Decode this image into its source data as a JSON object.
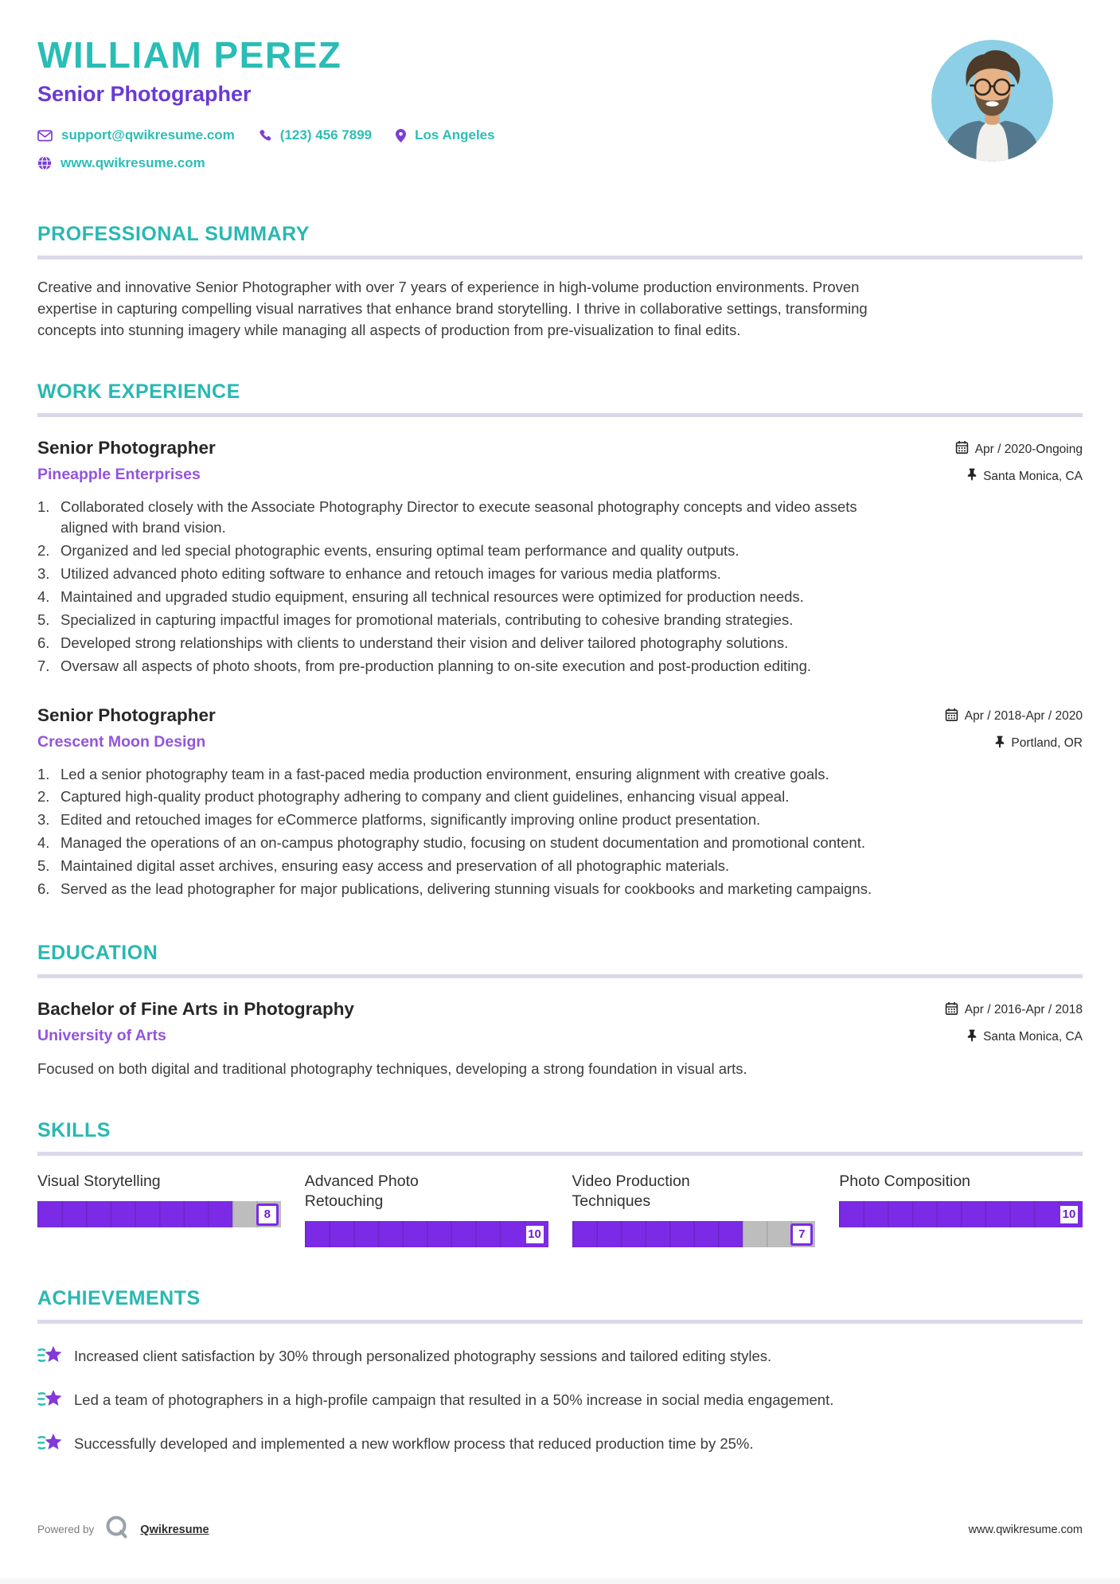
{
  "colors": {
    "teal": "#29bdb6",
    "purple_title": "#6a3ad2",
    "purple_company": "#9254dd",
    "bar_purple": "#7b2be5",
    "bar_gray": "#bdbdbd",
    "divider": "#dcd8ea",
    "body_text": "#3c3c3c",
    "avatar_background": "#8ccfe6"
  },
  "icons": {
    "contact": [
      "envelope-icon",
      "phone-icon",
      "map-pin-icon",
      "globe-icon"
    ],
    "entry_meta": [
      "calendar-icon",
      "pushpin-icon"
    ],
    "achievement": "star-icon",
    "footer": "qwikresume-q-logo"
  },
  "header": {
    "name": "WILLIAM PEREZ",
    "title": "Senior Photographer",
    "contact": {
      "email": "support@qwikresume.com",
      "phone": "(123) 456 7899",
      "location": "Los Angeles",
      "website": "www.qwikresume.com"
    }
  },
  "sections": {
    "summary": {
      "heading": "PROFESSIONAL SUMMARY",
      "text": "Creative and innovative Senior Photographer with over 7 years of experience in high-volume production environments. Proven expertise in capturing compelling visual narratives that enhance brand storytelling. I thrive in collaborative settings, transforming concepts into stunning imagery while managing all aspects of production from pre-visualization to final edits."
    },
    "experience": {
      "heading": "WORK EXPERIENCE",
      "jobs": [
        {
          "title": "Senior Photographer",
          "company": "Pineapple Enterprises",
          "date": "Apr / 2020-Ongoing",
          "location": "Santa Monica, CA",
          "bullets": [
            "Collaborated closely with the Associate Photography Director to execute seasonal photography concepts and video assets aligned with brand vision.",
            "Organized and led special photographic events, ensuring optimal team performance and quality outputs.",
            "Utilized advanced photo editing software to enhance and retouch images for various media platforms.",
            "Maintained and upgraded studio equipment, ensuring all technical resources were optimized for production needs.",
            "Specialized in capturing impactful images for promotional materials, contributing to cohesive branding strategies.",
            "Developed strong relationships with clients to understand their vision and deliver tailored photography solutions.",
            "Oversaw all aspects of photo shoots, from pre-production planning to on-site execution and post-production editing."
          ]
        },
        {
          "title": "Senior Photographer",
          "company": "Crescent Moon Design",
          "date": "Apr / 2018-Apr / 2020",
          "location": "Portland, OR",
          "bullets": [
            "Led a senior photography team in a fast-paced media production environment, ensuring alignment with creative goals.",
            "Captured high-quality product photography adhering to company and client guidelines, enhancing visual appeal.",
            "Edited and retouched images for eCommerce platforms, significantly improving online product presentation.",
            "Managed the operations of an on-campus photography studio, focusing on student documentation and promotional content.",
            "Maintained digital asset archives, ensuring easy access and preservation of all photographic materials.",
            "Served as the lead photographer for major publications, delivering stunning visuals for cookbooks and marketing campaigns."
          ]
        }
      ]
    },
    "education": {
      "heading": "EDUCATION",
      "degree": "Bachelor of Fine Arts in Photography",
      "school": "University of Arts",
      "date": "Apr / 2016-Apr / 2018",
      "location": "Santa Monica, CA",
      "description": "Focused on both digital and traditional photography techniques, developing a strong foundation in visual arts."
    },
    "skills": {
      "heading": "SKILLS",
      "max_level": 10,
      "items": [
        {
          "name": "Visual Storytelling",
          "level": 8
        },
        {
          "name": "Advanced Photo Retouching",
          "level": 10
        },
        {
          "name": "Video Production Techniques",
          "level": 7
        },
        {
          "name": "Photo Composition",
          "level": 10
        }
      ]
    },
    "achievements": {
      "heading": "ACHIEVEMENTS",
      "items": [
        "Increased client satisfaction by 30% through personalized photography sessions and tailored editing styles.",
        "Led a team of photographers in a high-profile campaign that resulted in a 50% increase in social media engagement.",
        "Successfully developed and implemented a new workflow process that reduced production time by 25%."
      ]
    }
  },
  "footer": {
    "powered_by": "Powered by",
    "brand": "Qwikresume",
    "website": "www.qwikresume.com"
  }
}
